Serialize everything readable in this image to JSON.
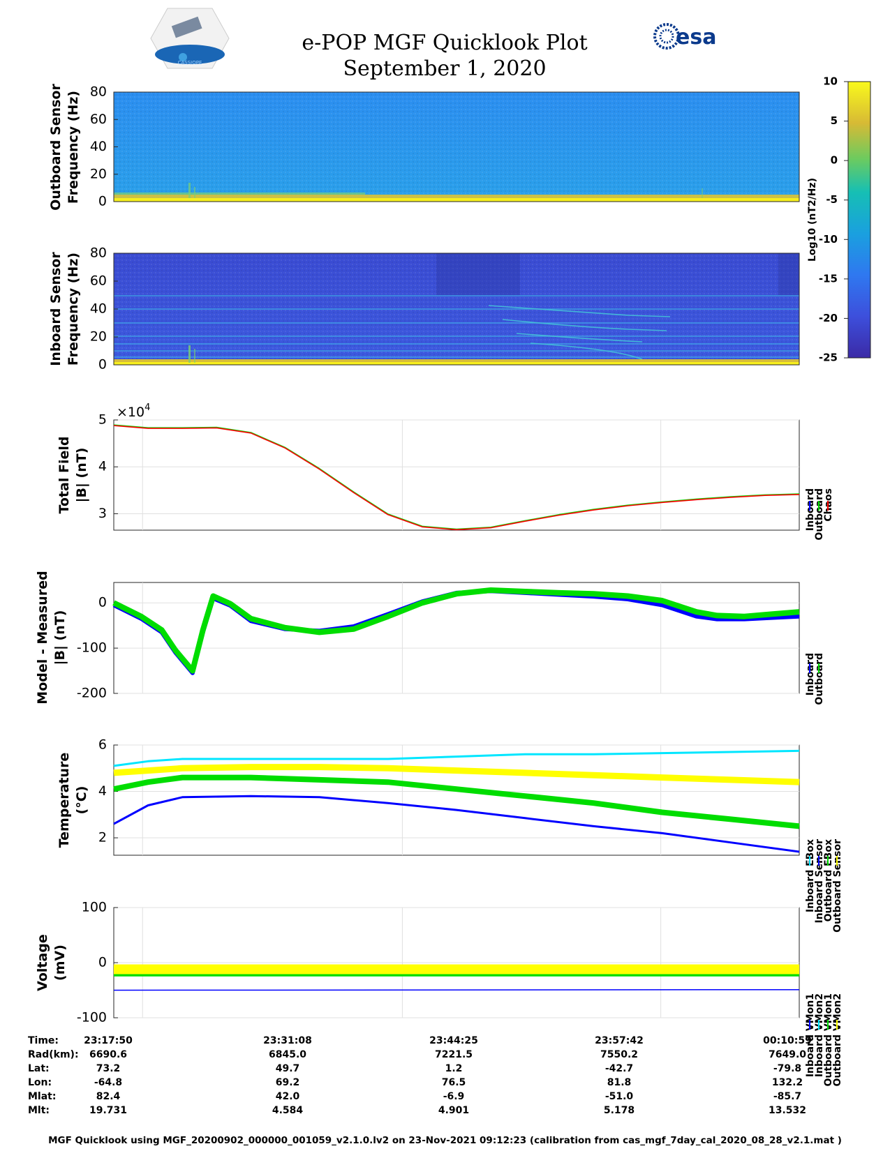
{
  "title": "e-POP MGF Quicklook Plot",
  "subtitle": "September 1, 2020",
  "logo_left_text": "CASSIOPE",
  "logo_right_text": "esa",
  "colors": {
    "inboard": "#0000ff",
    "outboard": "#00dd00",
    "chaos": "#ff0000",
    "cyan": "#00e6ff",
    "yellow": "#ffff00"
  },
  "chart_data": [
    {
      "id": "outboard-spectrogram",
      "type": "heatmap",
      "ylabel": [
        "Outboard Sensor",
        "Frequency (Hz)"
      ],
      "ylim": [
        0,
        80
      ],
      "yticks": [
        "80",
        "60",
        "40",
        "20",
        "0"
      ],
      "colorbar_label": "Log10 (nT2/Hz)",
      "colorbar_ticks": [
        "10",
        "5",
        "0",
        "-5",
        "-10",
        "-15",
        "-20",
        "-25"
      ],
      "clim": [
        -25,
        10
      ],
      "description_values": {
        "background_level": -13,
        "low_freq_line_level": 8
      }
    },
    {
      "id": "inboard-spectrogram",
      "type": "heatmap",
      "ylabel": [
        "Inboard Sensor",
        "Frequency (Hz)"
      ],
      "ylim": [
        0,
        80
      ],
      "yticks": [
        "80",
        "60",
        "40",
        "20",
        "0"
      ],
      "clim": [
        -25,
        10
      ]
    },
    {
      "id": "total-field",
      "type": "line",
      "ylabel": [
        "Total Field",
        "|B| (nT)"
      ],
      "exponent_label": "×10",
      "exponent_power": "4",
      "ylim": [
        2.65,
        5
      ],
      "yticks": [
        "5",
        "4",
        "3"
      ],
      "legend": [
        "Inboard",
        "Outboard",
        "Chaos"
      ],
      "x": [
        0,
        0.05,
        0.1,
        0.15,
        0.2,
        0.25,
        0.3,
        0.35,
        0.4,
        0.45,
        0.5,
        0.55,
        0.6,
        0.65,
        0.7,
        0.75,
        0.8,
        0.85,
        0.9,
        0.95,
        1.0
      ],
      "values": [
        4.88,
        4.82,
        4.82,
        4.83,
        4.72,
        4.4,
        3.95,
        3.45,
        2.98,
        2.72,
        2.66,
        2.7,
        2.84,
        2.97,
        3.08,
        3.17,
        3.24,
        3.3,
        3.35,
        3.39,
        3.41
      ]
    },
    {
      "id": "model-measured",
      "type": "line",
      "ylabel": [
        "Model - Measured",
        "|B| (nT)"
      ],
      "ylim": [
        -200,
        45
      ],
      "yticks": [
        "0",
        "-100",
        "-200"
      ],
      "legend": [
        "Inboard",
        "Outboard"
      ],
      "x": [
        0,
        0.04,
        0.07,
        0.09,
        0.115,
        0.13,
        0.145,
        0.17,
        0.2,
        0.25,
        0.3,
        0.35,
        0.4,
        0.45,
        0.5,
        0.55,
        0.6,
        0.65,
        0.7,
        0.75,
        0.8,
        0.85,
        0.88,
        0.92,
        0.96,
        1.0
      ],
      "series": [
        {
          "name": "Outboard",
          "values": [
            0,
            -30,
            -60,
            -105,
            -150,
            -60,
            15,
            -2,
            -35,
            -55,
            -65,
            -58,
            -30,
            0,
            20,
            28,
            25,
            22,
            20,
            15,
            5,
            -20,
            -28,
            -30,
            -25,
            -20
          ]
        },
        {
          "name": "Inboard",
          "values": [
            -5,
            -35,
            -65,
            -110,
            -155,
            -65,
            10,
            -6,
            -40,
            -58,
            -62,
            -52,
            -25,
            3,
            22,
            26,
            22,
            18,
            14,
            8,
            -5,
            -30,
            -36,
            -36,
            -33,
            -30
          ]
        }
      ]
    },
    {
      "id": "temperature",
      "type": "line",
      "ylabel": [
        "Temperature",
        "(°C)"
      ],
      "ylim": [
        1.25,
        6
      ],
      "yticks": [
        "6",
        "4",
        "2"
      ],
      "legend": [
        "Inboard EBox",
        "Inboard Sensor",
        "Outboard EBox",
        "Outboard Sensor"
      ],
      "x": [
        0,
        0.05,
        0.1,
        0.2,
        0.3,
        0.4,
        0.5,
        0.6,
        0.7,
        0.8,
        0.9,
        1.0
      ],
      "series": [
        {
          "name": "Inboard EBox",
          "values": [
            5.1,
            5.3,
            5.4,
            5.4,
            5.4,
            5.4,
            5.5,
            5.6,
            5.6,
            5.65,
            5.7,
            5.75
          ]
        },
        {
          "name": "Inboard Sensor",
          "values": [
            2.6,
            3.4,
            3.75,
            3.8,
            3.75,
            3.5,
            3.2,
            2.85,
            2.5,
            2.2,
            1.8,
            1.4
          ]
        },
        {
          "name": "Outboard EBox",
          "values": [
            4.1,
            4.4,
            4.6,
            4.6,
            4.5,
            4.4,
            4.1,
            3.8,
            3.5,
            3.1,
            2.8,
            2.5
          ]
        },
        {
          "name": "Outboard Sensor",
          "values": [
            4.8,
            4.9,
            5.0,
            5.05,
            5.05,
            5.0,
            4.9,
            4.8,
            4.7,
            4.6,
            4.5,
            4.4
          ]
        }
      ]
    },
    {
      "id": "voltage",
      "type": "line",
      "ylabel": [
        "Voltage",
        "(mV)"
      ],
      "ylim": [
        -100,
        100
      ],
      "yticks": [
        "100",
        "0",
        "-100"
      ],
      "legend": [
        "Inboard VMon1",
        "Inboard VMon2",
        "Outboard VMon1",
        "Outboard VMon2"
      ],
      "x": [
        0,
        1
      ],
      "series": [
        {
          "name": "Inboard VMon1",
          "values": [
            -50,
            -49
          ]
        },
        {
          "name": "Inboard VMon2",
          "values": [
            -8,
            -8
          ]
        },
        {
          "name": "Outboard VMon1",
          "values": [
            -20,
            -20
          ]
        },
        {
          "name": "Outboard VMon2",
          "values": [
            -12,
            -12
          ]
        }
      ]
    }
  ],
  "orbit_table": {
    "labels": [
      "Time:",
      "Rad(km):",
      "Lat:",
      "Lon:",
      "Mlat:",
      "Mlt:"
    ],
    "columns": [
      [
        "23:17:50",
        "6690.6",
        "73.2",
        "-64.8",
        "82.4",
        "19.731"
      ],
      [
        "23:31:08",
        "6845.0",
        "49.7",
        "69.2",
        "42.0",
        "4.584"
      ],
      [
        "23:44:25",
        "7221.5",
        "1.2",
        "76.5",
        "-6.9",
        "4.901"
      ],
      [
        "23:57:42",
        "7550.2",
        "-42.7",
        "81.8",
        "-51.0",
        "5.178"
      ],
      [
        "00:10:59",
        "7649.0",
        "-79.8",
        "132.2",
        "-85.7",
        "13.532"
      ]
    ]
  },
  "footer": "MGF Quicklook using MGF_20200902_000000_001059_v2.1.0.lv2 on 23-Nov-2021 09:12:23 (calibration from cas_mgf_7day_cal_2020_08_28_v2.1.mat )"
}
